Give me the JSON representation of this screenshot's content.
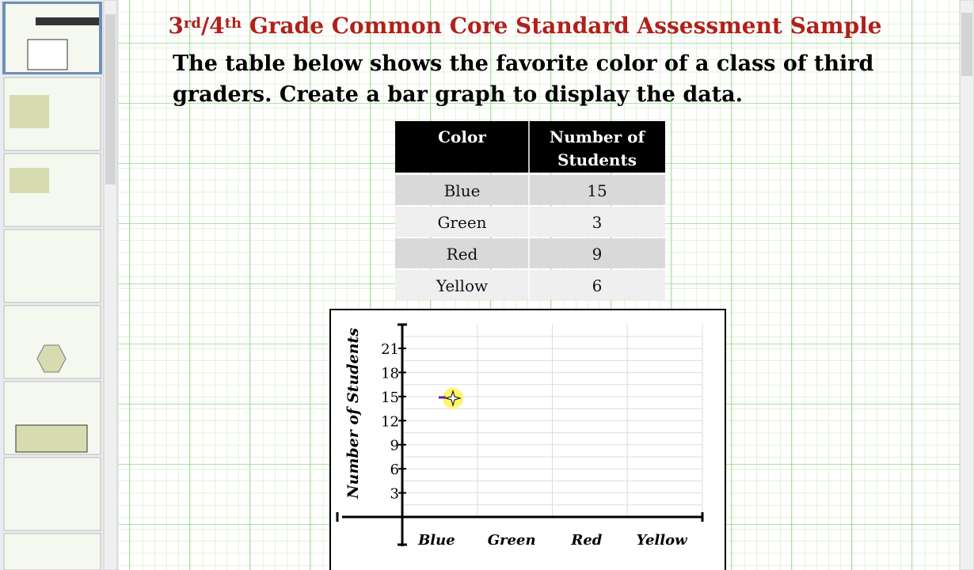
{
  "header": {
    "title_parts": [
      "3",
      "rd",
      "/4",
      "th",
      " Grade Common Core Standard Assessment Sample"
    ]
  },
  "question": {
    "lines": [
      "The table below shows the favorite color of a class of third",
      "graders.  Create a bar graph to display the data."
    ]
  },
  "table": {
    "header": [
      "Color",
      "Number of Students"
    ],
    "rows": [
      [
        "Blue",
        15
      ],
      [
        "Green",
        3
      ],
      [
        "Red",
        9
      ],
      [
        "Yellow",
        6
      ]
    ]
  },
  "graph": {
    "y_label": "Number of Students",
    "yticks": [
      3,
      6,
      9,
      12,
      15,
      18,
      21
    ],
    "categories": [
      "Blue",
      "Green",
      "Red",
      "Yellow"
    ]
  }
}
